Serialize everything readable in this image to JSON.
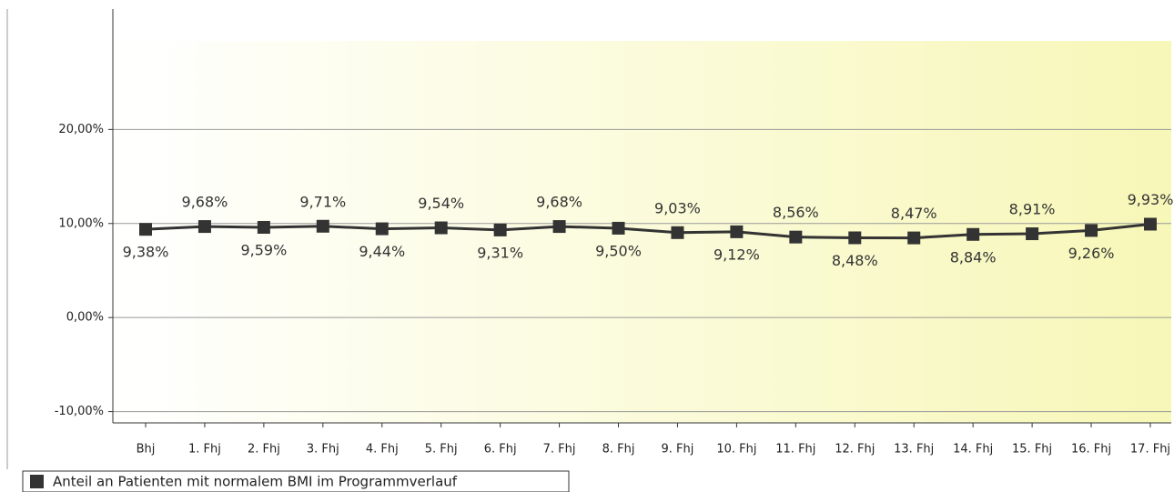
{
  "chart_data": {
    "type": "line",
    "categories": [
      "Bhj",
      "1. Fhj",
      "2. Fhj",
      "3. Fhj",
      "4. Fhj",
      "5. Fhj",
      "6. Fhj",
      "7. Fhj",
      "8. Fhj",
      "9. Fhj",
      "10. Fhj",
      "11. Fhj",
      "12. Fhj",
      "13. Fhj",
      "14. Fhj",
      "15. Fhj",
      "16. Fhj",
      "17. Fhj"
    ],
    "series": [
      {
        "name": "Anteil an Patienten mit normalem BMI im Programmverlauf",
        "color": "#333333",
        "values": [
          9.38,
          9.68,
          9.59,
          9.71,
          9.44,
          9.54,
          9.31,
          9.68,
          9.5,
          9.03,
          9.12,
          8.56,
          8.48,
          8.47,
          8.84,
          8.91,
          9.26,
          9.93
        ],
        "value_labels": [
          "9,38%",
          "9,68%",
          "9,59%",
          "9,71%",
          "9,44%",
          "9,54%",
          "9,31%",
          "9,68%",
          "9,50%",
          "9,03%",
          "9,12%",
          "8,56%",
          "8,48%",
          "8,47%",
          "8,84%",
          "8,91%",
          "9,26%",
          "9,93%"
        ]
      }
    ],
    "ylim": [
      -11.2,
      32.8
    ],
    "yticks": [
      {
        "value": -10,
        "label": "-10,00%"
      },
      {
        "value": 0,
        "label": "0,00%"
      },
      {
        "value": 10,
        "label": "10,00%"
      },
      {
        "value": 20,
        "label": "20,00%"
      }
    ],
    "grid": true,
    "legend": "bottom-left"
  }
}
